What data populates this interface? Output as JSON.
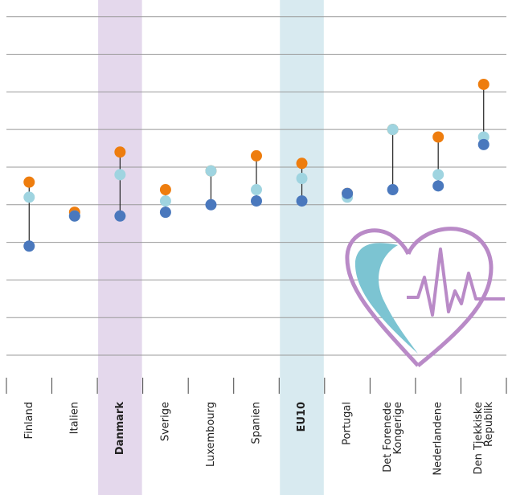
{
  "chart_data": {
    "type": "dotplot",
    "categories": [
      "Finland",
      "Italien",
      "Danmark",
      "Sverige",
      "Luxembourg",
      "Spanien",
      "EU10",
      "Portugal",
      "Det Forenede Kongerige",
      "Nederlandene",
      "Den Tjekkiske Republik"
    ],
    "series": [
      {
        "color": "#ee7d0e",
        "values": [
          4.6,
          3.8,
          5.4,
          4.4,
          4.9,
          5.3,
          5.1,
          4.3,
          6.0,
          5.8,
          7.2
        ]
      },
      {
        "color": "#9fd4e0",
        "values": [
          4.2,
          3.7,
          4.8,
          4.1,
          4.9,
          4.4,
          4.7,
          4.2,
          6.0,
          4.8,
          5.8
        ]
      },
      {
        "color": "#4a78bd",
        "values": [
          2.9,
          3.7,
          3.7,
          3.8,
          4.0,
          4.1,
          4.1,
          4.3,
          4.4,
          4.5,
          5.6
        ]
      }
    ],
    "ylim": [
      0,
      9.4
    ],
    "yticks": [
      0,
      1,
      2,
      3,
      4,
      5,
      6,
      7,
      8,
      9
    ],
    "grid": true,
    "highlights": [
      {
        "index": 2,
        "color": "#e4d8ec"
      },
      {
        "index": 6,
        "color": "#d8eaf0"
      }
    ]
  }
}
